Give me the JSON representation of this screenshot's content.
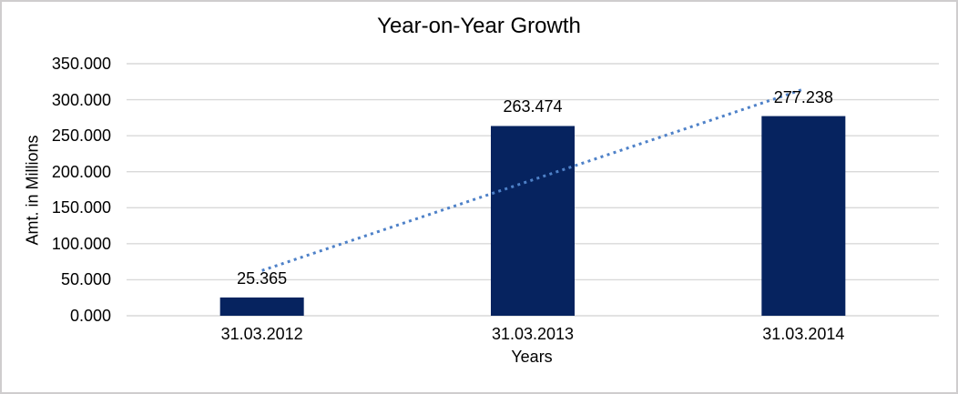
{
  "chart_data": {
    "type": "bar",
    "title": "Year-on-Year Growth",
    "xlabel": "Years",
    "ylabel": "Amt. in Millions",
    "categories": [
      "31.03.2012",
      "31.03.2013",
      "31.03.2014"
    ],
    "values": [
      25.365,
      263.474,
      277.238
    ],
    "data_labels": [
      "25.365",
      "263.474",
      "277.238"
    ],
    "y_ticks": [
      {
        "value": 0,
        "label": "0.000"
      },
      {
        "value": 50,
        "label": "50.000"
      },
      {
        "value": 100,
        "label": "100.000"
      },
      {
        "value": 150,
        "label": "150.000"
      },
      {
        "value": 200,
        "label": "200.000"
      },
      {
        "value": 250,
        "label": "250.000"
      },
      {
        "value": 300,
        "label": "300.000"
      },
      {
        "value": 350,
        "label": "350.000"
      }
    ],
    "ylim": [
      0,
      350
    ],
    "grid": true,
    "legend": false,
    "trendline": {
      "type": "linear",
      "style": "dotted",
      "endpoint_values": [
        62.8,
        314.6
      ]
    },
    "colors": {
      "bar": "#06235F",
      "trendline": "#4E81C8",
      "gridline": "#D9D9D9",
      "text": "#000000",
      "background": "#FFFFFF",
      "frame_border": "#CFCDCE"
    }
  }
}
